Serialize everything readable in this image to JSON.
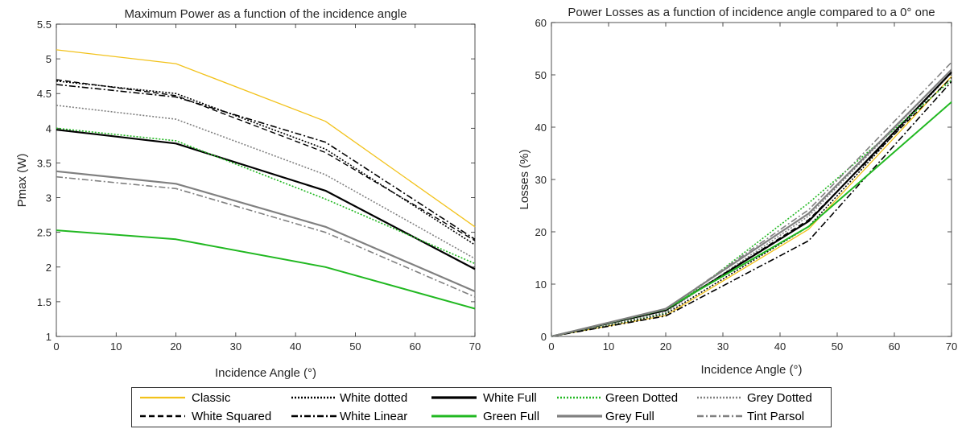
{
  "chart_data": [
    {
      "type": "line",
      "title": "Maximum Power as a  function of the incidence angle",
      "xlabel": "Incidence Angle (°)",
      "ylabel": "Pmax (W)",
      "xlim": [
        0,
        70
      ],
      "ylim": [
        1,
        5.5
      ],
      "xticks": [
        "0",
        "10",
        "20",
        "30",
        "40",
        "50",
        "60",
        "70"
      ],
      "yticks": [
        "1",
        "1.5",
        "2",
        "2.5",
        "3",
        "3.5",
        "4",
        "4.5",
        "5",
        "5.5"
      ],
      "x": [
        0,
        20,
        45,
        70
      ],
      "series": [
        {
          "name": "Classic",
          "values": [
            5.13,
            4.93,
            4.1,
            2.58
          ]
        },
        {
          "name": "White dotted",
          "values": [
            4.68,
            4.5,
            3.7,
            2.32
          ]
        },
        {
          "name": "White Full",
          "values": [
            3.98,
            3.78,
            3.1,
            1.97
          ]
        },
        {
          "name": "Green Dotted",
          "values": [
            4.0,
            3.82,
            2.98,
            2.05
          ]
        },
        {
          "name": "Grey Dotted",
          "values": [
            4.33,
            4.13,
            3.33,
            2.12
          ]
        },
        {
          "name": "White Squared",
          "values": [
            4.7,
            4.47,
            3.65,
            2.38
          ]
        },
        {
          "name": "White Linear",
          "values": [
            4.63,
            4.45,
            3.8,
            2.4
          ]
        },
        {
          "name": "Green Full",
          "values": [
            2.53,
            2.4,
            2.0,
            1.4
          ]
        },
        {
          "name": "Grey Full",
          "values": [
            3.38,
            3.2,
            2.58,
            1.65
          ]
        },
        {
          "name": "Tint Parsol",
          "values": [
            3.3,
            3.13,
            2.5,
            1.57
          ]
        }
      ]
    },
    {
      "type": "line",
      "title": "Power Losses as a function of incidence angle compared to a 0° one",
      "xlabel": "Incidence Angle (°)",
      "ylabel": "Losses (%)",
      "xlim": [
        0,
        70
      ],
      "ylim": [
        0,
        60
      ],
      "xticks": [
        "0",
        "10",
        "20",
        "30",
        "40",
        "50",
        "60",
        "70"
      ],
      "yticks": [
        "0",
        "10",
        "20",
        "30",
        "40",
        "50",
        "60"
      ],
      "x": [
        0,
        20,
        45,
        70
      ],
      "series": [
        {
          "name": "Classic",
          "values": [
            0,
            4.0,
            20.5,
            49.7
          ]
        },
        {
          "name": "White dotted",
          "values": [
            0,
            4.3,
            21.0,
            50.5
          ]
        },
        {
          "name": "White Full",
          "values": [
            0,
            5.0,
            22.0,
            50.5
          ]
        },
        {
          "name": "Green Dotted",
          "values": [
            0,
            4.5,
            25.5,
            49.0
          ]
        },
        {
          "name": "Grey Dotted",
          "values": [
            0,
            4.6,
            23.0,
            51.0
          ]
        },
        {
          "name": "White Squared",
          "values": [
            0,
            4.9,
            22.3,
            49.5
          ]
        },
        {
          "name": "White Linear",
          "values": [
            0,
            3.9,
            18.3,
            48.7
          ]
        },
        {
          "name": "Green Full",
          "values": [
            0,
            5.2,
            21.0,
            44.8
          ]
        },
        {
          "name": "Grey Full",
          "values": [
            0,
            5.3,
            23.5,
            51.0
          ]
        },
        {
          "name": "Tint Parsol",
          "values": [
            0,
            5.2,
            24.2,
            52.4
          ]
        }
      ]
    }
  ],
  "styles": {
    "Classic": {
      "color": "#f2c21b",
      "dash": "",
      "width": 1.3
    },
    "White dotted": {
      "color": "#000000",
      "dash": "2,2",
      "width": 1.6
    },
    "White Full": {
      "color": "#000000",
      "dash": "",
      "width": 2.2
    },
    "Green Dotted": {
      "color": "#21b821",
      "dash": "2,2",
      "width": 1.6
    },
    "Grey Dotted": {
      "color": "#808080",
      "dash": "2,2",
      "width": 1.6
    },
    "White Squared": {
      "color": "#000000",
      "dash": "7,4",
      "width": 1.4
    },
    "White Linear": {
      "color": "#000000",
      "dash": "8,3,2,3",
      "width": 1.6
    },
    "Green Full": {
      "color": "#21b821",
      "dash": "",
      "width": 2.0
    },
    "Grey Full": {
      "color": "#808080",
      "dash": "",
      "width": 2.2
    },
    "Tint Parsol": {
      "color": "#808080",
      "dash": "8,3,2,3",
      "width": 1.6
    }
  },
  "legend": {
    "items": [
      "Classic",
      "White dotted",
      "White Full",
      "Green Dotted",
      "Grey Dotted",
      "White Squared",
      "White Linear",
      "Green Full",
      "Grey Full",
      "Tint Parsol"
    ]
  }
}
